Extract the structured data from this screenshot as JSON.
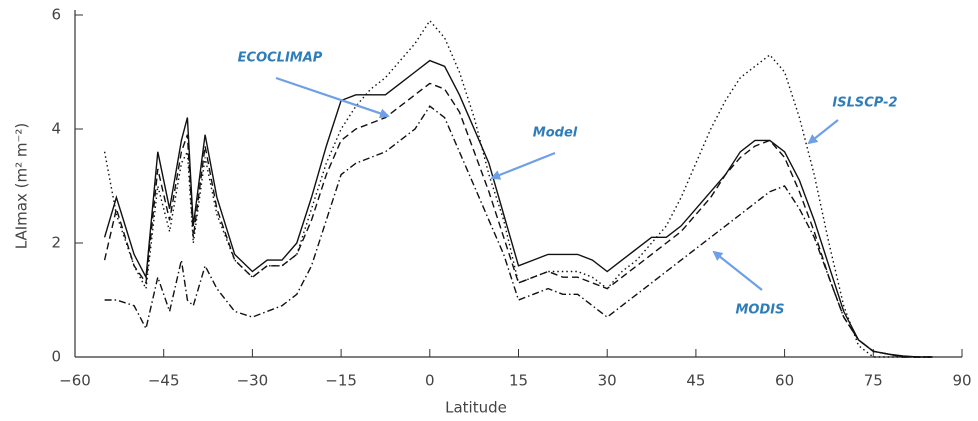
{
  "chart_data": {
    "type": "line",
    "xlabel": "Latitude",
    "ylabel": "LAImax (m² m⁻²)",
    "x": [
      -55,
      -53,
      -50,
      -48,
      -46,
      -44,
      -42,
      -41,
      -40,
      -38,
      -36,
      -33,
      -30,
      -27.5,
      -25,
      -22.5,
      -20,
      -17.5,
      -15,
      -12.5,
      -10,
      -7.5,
      -5,
      -2.5,
      0,
      2.5,
      5,
      7.5,
      10,
      12.5,
      15,
      17.5,
      20,
      22.5,
      25,
      27.5,
      30,
      32.5,
      35,
      37.5,
      40,
      42.5,
      45,
      47.5,
      50,
      52.5,
      55,
      57.5,
      60,
      62.5,
      65,
      67.5,
      70,
      72.5,
      75,
      77.5,
      80,
      82.5,
      85
    ],
    "series": [
      {
        "name": "Model",
        "color": "#111111",
        "dash": "solid",
        "values": [
          2.1,
          2.8,
          1.8,
          1.4,
          3.6,
          2.6,
          3.8,
          4.2,
          2.3,
          3.9,
          2.8,
          1.8,
          1.5,
          1.7,
          1.7,
          2.0,
          2.8,
          3.7,
          4.5,
          4.6,
          4.6,
          4.6,
          4.8,
          5.0,
          5.2,
          5.1,
          4.6,
          4.0,
          3.4,
          2.5,
          1.6,
          1.7,
          1.8,
          1.8,
          1.8,
          1.7,
          1.5,
          1.7,
          1.9,
          2.1,
          2.1,
          2.3,
          2.6,
          2.9,
          3.2,
          3.6,
          3.8,
          3.8,
          3.6,
          3.1,
          2.4,
          1.6,
          0.8,
          0.3,
          0.1,
          0.05,
          0.02,
          0,
          0
        ]
      },
      {
        "name": "ISLSCP-2",
        "color": "#111111",
        "dash": "dotted",
        "values": [
          3.6,
          2.5,
          1.6,
          1.2,
          3.0,
          2.2,
          3.4,
          3.6,
          2.0,
          3.5,
          2.5,
          1.7,
          1.4,
          1.6,
          1.6,
          1.8,
          2.6,
          3.4,
          4.0,
          4.4,
          4.7,
          4.9,
          5.2,
          5.5,
          5.9,
          5.6,
          5.0,
          4.2,
          3.2,
          2.4,
          1.3,
          1.4,
          1.5,
          1.5,
          1.5,
          1.4,
          1.2,
          1.5,
          1.7,
          2.0,
          2.3,
          2.8,
          3.4,
          4.0,
          4.5,
          4.9,
          5.1,
          5.3,
          5.0,
          4.2,
          3.2,
          2.0,
          0.9,
          0.2,
          0,
          0,
          0,
          0,
          0
        ]
      },
      {
        "name": "ECOCLIMAP",
        "color": "#111111",
        "dash": "dashed",
        "values": [
          1.7,
          2.6,
          1.6,
          1.3,
          3.3,
          2.4,
          3.6,
          3.9,
          2.1,
          3.7,
          2.6,
          1.7,
          1.4,
          1.6,
          1.6,
          1.8,
          2.4,
          3.2,
          3.8,
          4.0,
          4.1,
          4.2,
          4.4,
          4.6,
          4.8,
          4.7,
          4.3,
          3.6,
          2.9,
          2.1,
          1.3,
          1.4,
          1.5,
          1.4,
          1.4,
          1.3,
          1.2,
          1.4,
          1.6,
          1.8,
          2.0,
          2.2,
          2.5,
          2.8,
          3.2,
          3.5,
          3.7,
          3.8,
          3.5,
          2.9,
          2.2,
          1.4,
          0.7,
          0.3,
          0.1,
          0.05,
          0,
          0,
          0
        ]
      },
      {
        "name": "MODIS",
        "color": "#111111",
        "dash": "dashdot",
        "values": [
          1.0,
          1.0,
          0.9,
          0.5,
          1.4,
          0.8,
          1.7,
          1.0,
          0.9,
          1.6,
          1.2,
          0.8,
          0.7,
          0.8,
          0.9,
          1.1,
          1.6,
          2.4,
          3.2,
          3.4,
          3.5,
          3.6,
          3.8,
          4.0,
          4.4,
          4.2,
          3.6,
          3.0,
          2.4,
          1.8,
          1.0,
          1.1,
          1.2,
          1.1,
          1.1,
          0.9,
          0.7,
          0.9,
          1.1,
          1.3,
          1.5,
          1.7,
          1.9,
          2.1,
          2.3,
          2.5,
          2.7,
          2.9,
          3.0,
          2.6,
          2.1,
          1.4,
          0.7,
          0.3,
          0.1,
          0.05,
          0,
          0,
          0
        ]
      }
    ],
    "annotation_color": "#2f7db8",
    "arrow_color": "#6f9fe6",
    "xlim": [
      -60,
      90
    ],
    "xticks": [
      {
        "value": -60,
        "label": "−60"
      },
      {
        "value": -45,
        "label": "−45"
      },
      {
        "value": -30,
        "label": "−30"
      },
      {
        "value": -15,
        "label": "−15"
      },
      0,
      15,
      30,
      45,
      60,
      75,
      90
    ],
    "ylim": [
      0,
      6
    ],
    "yticks": [
      0,
      2,
      4,
      6
    ]
  }
}
